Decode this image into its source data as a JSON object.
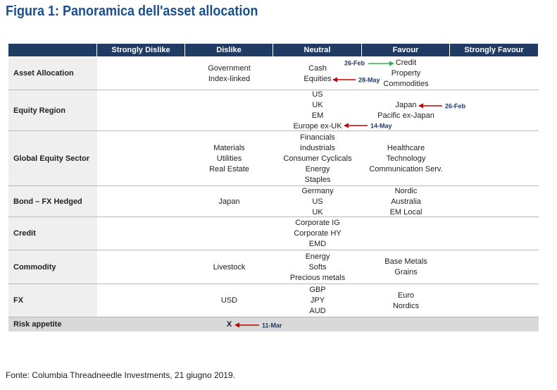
{
  "title": "Figura 1: Panoramica dell'asset allocation",
  "table": {
    "columns": [
      "Strongly Dislike",
      "Dislike",
      "Neutral",
      "Favour",
      "Strongly Favour"
    ],
    "rows": [
      {
        "label": "Asset Allocation",
        "cells": [
          [],
          [
            "Government",
            "Index-linked"
          ],
          [
            "Cash",
            "Equities"
          ],
          [
            "Credit",
            "Property",
            "Commodities"
          ],
          []
        ]
      },
      {
        "label": "Equity Region",
        "cells": [
          [],
          [],
          [
            "US",
            "UK",
            "EM",
            "Europe ex-UK"
          ],
          [
            "Japan",
            "Pacific ex-Japan"
          ],
          []
        ]
      },
      {
        "label": "Global Equity Sector",
        "cells": [
          [],
          [
            "Materials",
            "Utilities",
            "Real Estate"
          ],
          [
            "Financials",
            "Industrials",
            "Consumer Cyclicals",
            "Energy",
            "Staples"
          ],
          [
            "Healthcare",
            "Technology",
            "Communication Serv."
          ],
          []
        ]
      },
      {
        "label": "Bond – FX Hedged",
        "cells": [
          [],
          [
            "Japan"
          ],
          [
            "Germany",
            "US",
            "UK"
          ],
          [
            "Nordic",
            "Australia",
            "EM Local"
          ],
          []
        ]
      },
      {
        "label": "Credit",
        "cells": [
          [],
          [],
          [
            "Corporate IG",
            "Corporate HY",
            "EMD"
          ],
          [],
          []
        ]
      },
      {
        "label": "Commodity",
        "cells": [
          [],
          [
            "Livestock"
          ],
          [
            "Energy",
            "Softs",
            "Precious metals"
          ],
          [
            "Base Metals",
            "Grains"
          ],
          []
        ]
      },
      {
        "label": "FX",
        "cells": [
          [],
          [
            "USD"
          ],
          [
            "GBP",
            "JPY",
            "AUD"
          ],
          [
            "Euro",
            "Nordics"
          ],
          []
        ]
      },
      {
        "label": "Risk appetite",
        "cells": [
          [],
          [
            "X"
          ],
          [],
          [],
          []
        ]
      }
    ],
    "annotations": [
      {
        "date": "26-Feb",
        "color": "#2eb34a"
      },
      {
        "date": "28-May",
        "color": "#c00000"
      },
      {
        "date": "26-Feb",
        "color": "#c00000"
      },
      {
        "date": "14-May",
        "color": "#c00000"
      },
      {
        "date": "11-Mar",
        "color": "#c00000"
      }
    ]
  },
  "source": "Fonte: Columbia Threadneedle Investments, 21 giugno 2019."
}
